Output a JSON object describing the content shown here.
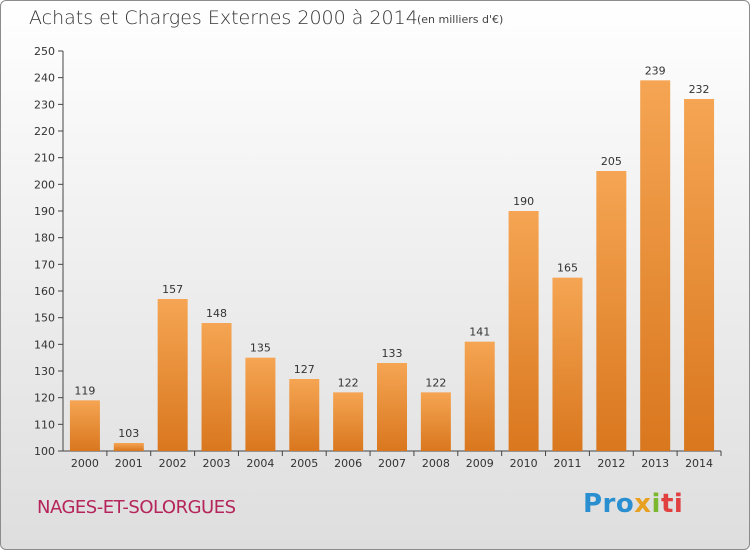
{
  "header": {
    "title": "Achats et Charges Externes 2000 à 2014",
    "unit": "(en milliers d'€)"
  },
  "footer": {
    "commune": "NAGES-ET-SOLORGUES",
    "logo": [
      "Pro",
      "x",
      "i",
      "ti"
    ]
  },
  "colors": {
    "bar_light": "#f5a553",
    "bar_dark": "#d9771e",
    "commune_text": "#b5245a"
  },
  "chart_data": {
    "type": "bar",
    "title": "Achats et Charges Externes 2000 à 2014",
    "subtitle": "(en milliers d'€)",
    "categories": [
      "2000",
      "2001",
      "2002",
      "2003",
      "2004",
      "2005",
      "2006",
      "2007",
      "2008",
      "2009",
      "2010",
      "2011",
      "2012",
      "2013",
      "2014"
    ],
    "values": [
      119,
      103,
      157,
      148,
      135,
      127,
      122,
      133,
      122,
      141,
      190,
      165,
      205,
      239,
      232
    ],
    "ylim": [
      100,
      250
    ],
    "yticks": [
      100,
      110,
      120,
      130,
      140,
      150,
      160,
      170,
      180,
      190,
      200,
      210,
      220,
      230,
      240,
      250
    ],
    "grid": false,
    "data_labels": true
  }
}
